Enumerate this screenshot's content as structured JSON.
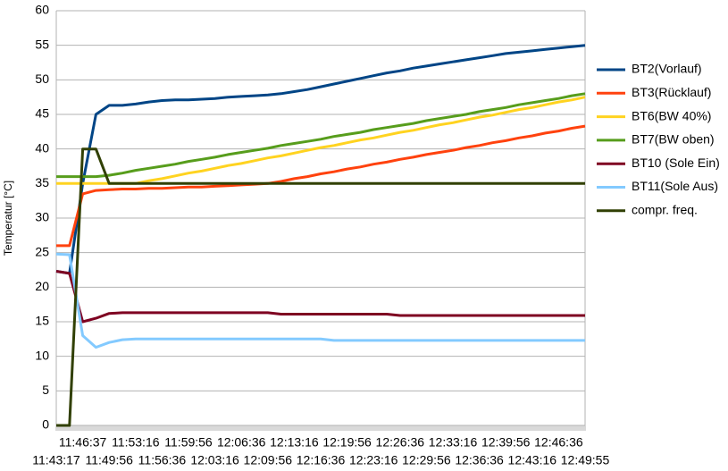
{
  "chart_data": {
    "type": "line",
    "y_label": "Temperatur [°C]",
    "categories": [
      "11:43:17",
      null,
      "11:46:37",
      null,
      "11:49:56",
      null,
      "11:53:16",
      null,
      "11:56:36",
      null,
      "11:59:56",
      null,
      "12:03:16",
      null,
      "12:06:36",
      null,
      "12:09:56",
      null,
      "12:13:16",
      null,
      "12:16:36",
      null,
      "12:19:56",
      null,
      "12:23:16",
      null,
      "12:26:36",
      null,
      "12:29:56",
      null,
      "12:33:16",
      null,
      "12:36:36",
      null,
      "12:39:56",
      null,
      "12:43:16",
      null,
      "12:46:36",
      null,
      "12:49:55"
    ],
    "ylim": [
      0,
      60
    ],
    "yticks": [
      0,
      5,
      10,
      15,
      20,
      25,
      30,
      35,
      40,
      45,
      50,
      55,
      60
    ],
    "grid": true,
    "legend": "right",
    "series": [
      {
        "name": "BT2(Vorlauf)",
        "color": "#004586",
        "values": [
          22.3,
          22,
          35,
          45,
          46.3,
          46.3,
          46.5,
          46.8,
          47,
          47.1,
          47.1,
          47.2,
          47.3,
          47.5,
          47.6,
          47.7,
          47.8,
          48,
          48.3,
          48.6,
          49,
          49.4,
          49.8,
          50.2,
          50.6,
          51,
          51.3,
          51.7,
          52,
          52.3,
          52.6,
          52.9,
          53.2,
          53.5,
          53.8,
          54,
          54.2,
          54.4,
          54.6,
          54.8,
          55
        ]
      },
      {
        "name": "BT3(Rücklauf)",
        "color": "#ff420e",
        "values": [
          26,
          26,
          33.5,
          34,
          34.1,
          34.2,
          34.2,
          34.3,
          34.3,
          34.4,
          34.5,
          34.5,
          34.6,
          34.7,
          34.8,
          34.9,
          35,
          35.3,
          35.7,
          36,
          36.4,
          36.7,
          37.1,
          37.4,
          37.8,
          38.1,
          38.5,
          38.8,
          39.2,
          39.5,
          39.8,
          40.2,
          40.5,
          40.9,
          41.2,
          41.6,
          41.9,
          42.3,
          42.6,
          43,
          43.3
        ]
      },
      {
        "name": "BT6(BW 40%)",
        "color": "#ffd320",
        "values": [
          35,
          35,
          35,
          35,
          35,
          35,
          35,
          35.4,
          35.7,
          36.1,
          36.5,
          36.8,
          37.2,
          37.6,
          37.9,
          38.3,
          38.7,
          39,
          39.4,
          39.8,
          40.2,
          40.5,
          40.9,
          41.3,
          41.6,
          42,
          42.4,
          42.7,
          43.1,
          43.5,
          43.8,
          44.2,
          44.6,
          44.9,
          45.3,
          45.7,
          46,
          46.4,
          46.8,
          47.1,
          47.5
        ]
      },
      {
        "name": "BT7(BW oben)",
        "color": "#579d1c",
        "values": [
          36,
          36,
          36,
          36,
          36.2,
          36.5,
          36.9,
          37.2,
          37.5,
          37.8,
          38.2,
          38.5,
          38.8,
          39.2,
          39.5,
          39.8,
          40.1,
          40.5,
          40.8,
          41.1,
          41.4,
          41.8,
          42.1,
          42.4,
          42.8,
          43.1,
          43.4,
          43.7,
          44.1,
          44.4,
          44.7,
          45,
          45.4,
          45.7,
          46,
          46.4,
          46.7,
          47,
          47.3,
          47.7,
          48
        ]
      },
      {
        "name": "BT10 (Sole Ein)",
        "color": "#7e0021",
        "values": [
          22.3,
          22,
          15,
          15.5,
          16.2,
          16.3,
          16.3,
          16.3,
          16.3,
          16.3,
          16.3,
          16.3,
          16.3,
          16.3,
          16.3,
          16.3,
          16.3,
          16.1,
          16.1,
          16.1,
          16.1,
          16.1,
          16.1,
          16.1,
          16.1,
          16.1,
          15.9,
          15.9,
          15.9,
          15.9,
          15.9,
          15.9,
          15.9,
          15.9,
          15.9,
          15.9,
          15.9,
          15.9,
          15.9,
          15.9,
          15.9
        ]
      },
      {
        "name": "BT11(Sole Aus)",
        "color": "#83caff",
        "values": [
          24.8,
          24.7,
          13,
          11.3,
          12,
          12.4,
          12.5,
          12.5,
          12.5,
          12.5,
          12.5,
          12.5,
          12.5,
          12.5,
          12.5,
          12.5,
          12.5,
          12.5,
          12.5,
          12.5,
          12.5,
          12.3,
          12.3,
          12.3,
          12.3,
          12.3,
          12.3,
          12.3,
          12.3,
          12.3,
          12.3,
          12.3,
          12.3,
          12.3,
          12.3,
          12.3,
          12.3,
          12.3,
          12.3,
          12.3,
          12.3
        ]
      },
      {
        "name": "compr. freq.",
        "color": "#314004",
        "values": [
          0,
          0,
          40,
          40,
          35,
          35,
          35,
          35,
          35,
          35,
          35,
          35,
          35,
          35,
          35,
          35,
          35,
          35,
          35,
          35,
          35,
          35,
          35,
          35,
          35,
          35,
          35,
          35,
          35,
          35,
          35,
          35,
          35,
          35,
          35,
          35,
          35,
          35,
          35,
          35,
          35
        ]
      }
    ]
  }
}
